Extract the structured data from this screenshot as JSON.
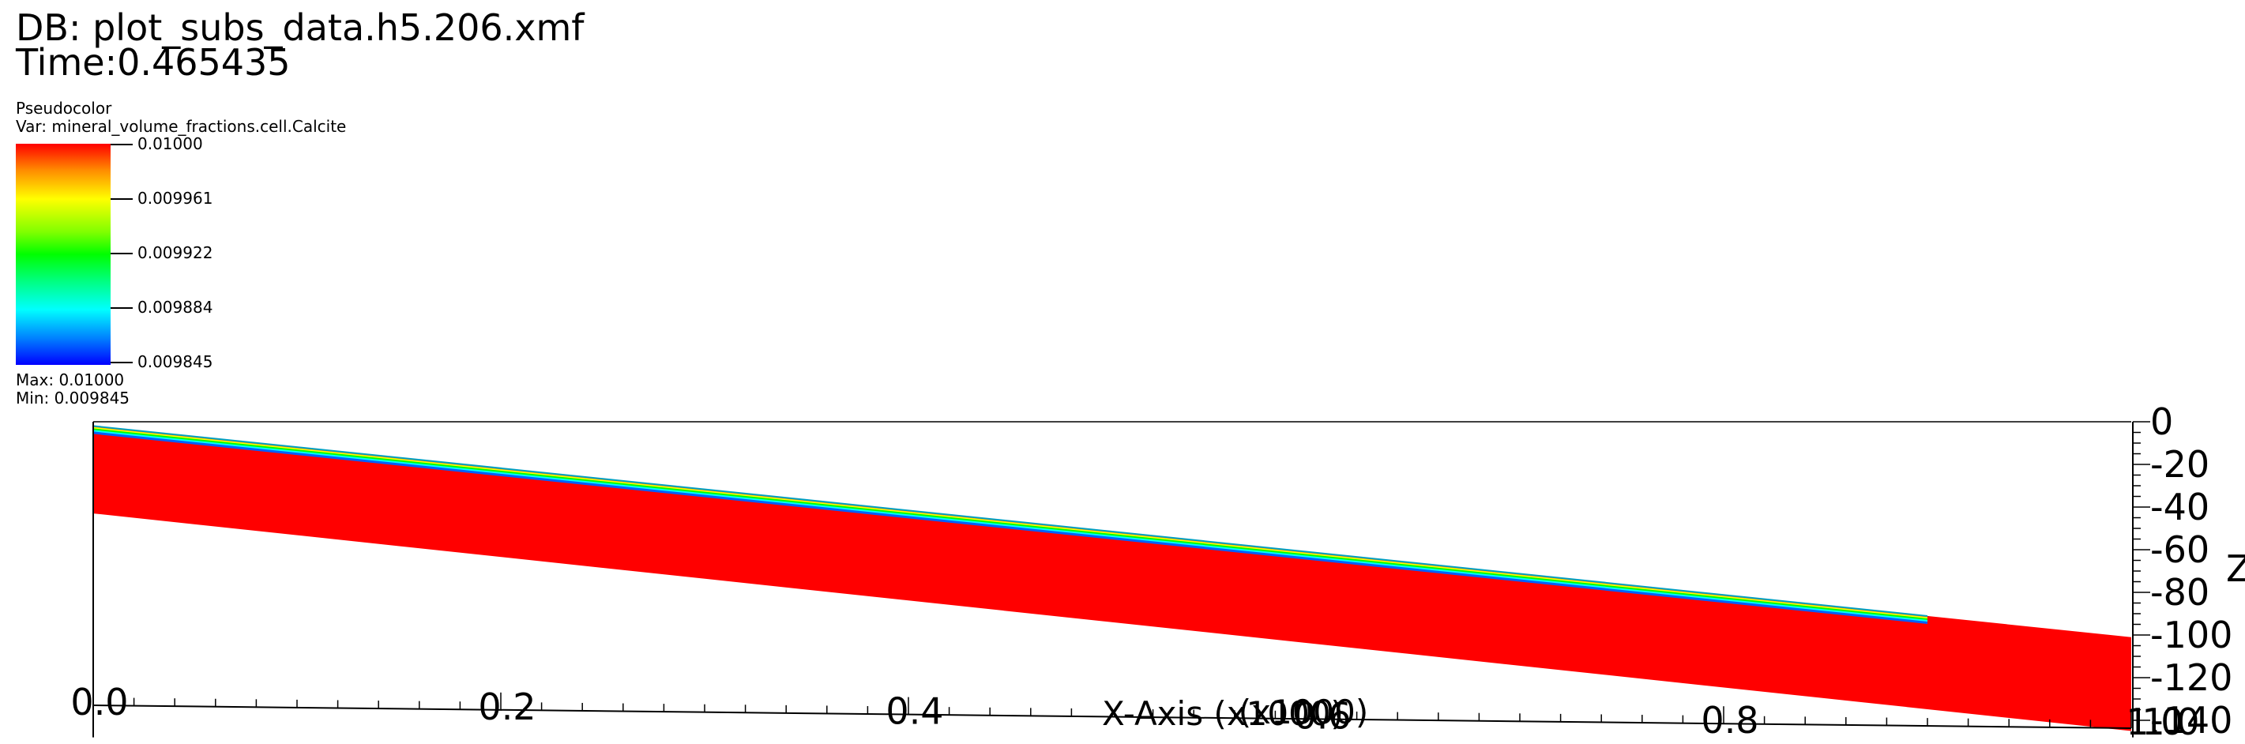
{
  "header": {
    "db_line": "DB: plot_subs_data.h5.206.xmf",
    "time_line": "Time:0.465435"
  },
  "legend": {
    "title": "Pseudocolor",
    "var": "Var: mineral_volume_fractions.cell.Calcite",
    "tick_labels": [
      "0.01000",
      "0.009961",
      "0.009922",
      "0.009884",
      "0.009845"
    ],
    "max": "Max:  0.01000",
    "min": "Min:  0.009845"
  },
  "colors": {
    "field": "#ff0000",
    "top_band": [
      "#ff8c00",
      "#ffff00",
      "#00ff00",
      "#00ffff",
      "#0060ff"
    ]
  },
  "chart_data": {
    "type": "heatmap",
    "x_axis": {
      "label": "X-Axis (x1000)",
      "overlap_label": "(x1000)",
      "ticks": [
        0.0,
        0.2,
        0.4,
        0.6,
        0.8,
        1.0
      ],
      "tick_labels": [
        "0.0",
        "0.2",
        "0.4",
        "0.6",
        "0.8",
        "1.0"
      ],
      "range": [
        0,
        1.0
      ]
    },
    "z_axis": {
      "label": "Z",
      "ticks": [
        0,
        -20,
        -40,
        -60,
        -80,
        -100,
        -120,
        -140
      ],
      "tick_labels": [
        "0",
        "-20",
        "-40",
        "-60",
        "-80",
        "-100",
        "-120",
        "-140"
      ],
      "range": [
        -140,
        0
      ]
    },
    "corner_label": "1.0",
    "variable": "mineral_volume_fractions.cell.Calcite",
    "color_range": [
      0.009845,
      0.01
    ],
    "domain_outline": {
      "x": [
        0.0,
        0.0,
        1.0,
        1.0
      ],
      "z": [
        -2,
        -43,
        -145,
        -101
      ]
    },
    "reaction_front_end_x": 0.9
  }
}
